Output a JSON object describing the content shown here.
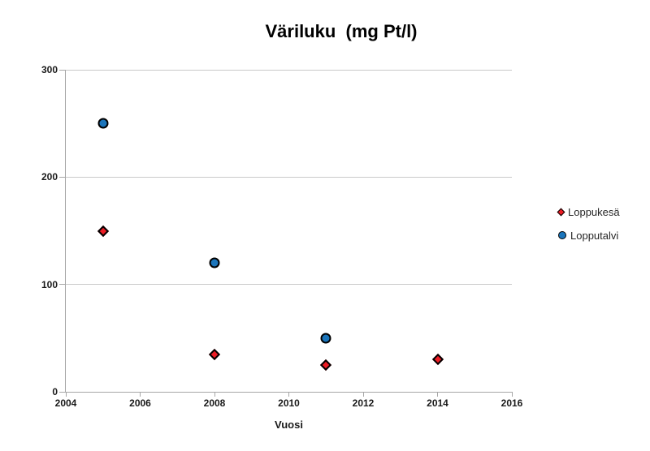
{
  "chart_data": {
    "type": "scatter",
    "title": "Väriluku  (mg Pt/l)",
    "xlabel": "Vuosi",
    "ylabel": "",
    "xlim": [
      2004,
      2016
    ],
    "ylim": [
      0,
      300
    ],
    "x_ticks": [
      2004,
      2006,
      2008,
      2010,
      2012,
      2014,
      2016
    ],
    "y_ticks": [
      0,
      100,
      200,
      300
    ],
    "grid": "horizontal-only",
    "legend_position": "right",
    "series": [
      {
        "name": "Loppukesä",
        "key": "loppukesa",
        "marker": "diamond",
        "color": "#ED1C24",
        "points": [
          [
            2005,
            150
          ],
          [
            2008,
            35
          ],
          [
            2011,
            25
          ],
          [
            2014,
            30
          ]
        ]
      },
      {
        "name": "Lopputalvi",
        "key": "lopputalvi",
        "marker": "circle",
        "color": "#1B75BB",
        "points": [
          [
            2005,
            250
          ],
          [
            2008,
            120
          ],
          [
            2011,
            50
          ]
        ]
      }
    ]
  },
  "colors": {
    "background": "#FFFFFF",
    "gridline": "#C9C9C9",
    "axis": "#A6A6A6",
    "title_text": "#000000",
    "tick_text": "#1A1A1A",
    "legend_text": "#262626",
    "series_loppukesa": "#ED1C24",
    "series_lopputalvi": "#1B75BB"
  }
}
